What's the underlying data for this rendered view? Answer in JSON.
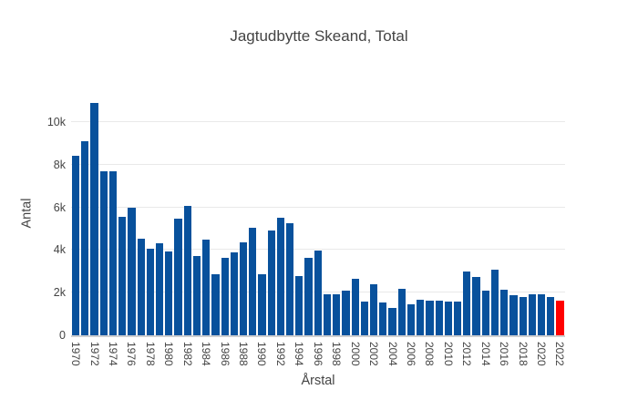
{
  "title": "Jagtudbytte Skeand, Total",
  "colors": {
    "bar": "#08519c",
    "highlight": "#ff0000",
    "text": "#444444",
    "grid": "#e9e9e9",
    "axis_line": "#d0d0d0",
    "background": "#ffffff"
  },
  "chart_data": {
    "type": "bar",
    "title": "Jagtudbytte Skeand, Total",
    "xlabel": "Årstal",
    "ylabel": "Antal",
    "grid": true,
    "legend": false,
    "ylim": [
      0,
      11450
    ],
    "ytick_values": [
      0,
      2000,
      4000,
      6000,
      8000,
      10000
    ],
    "ytick_labels": [
      "0",
      "2k",
      "4k",
      "6k",
      "8k",
      "10k"
    ],
    "xtick_step": 2,
    "highlight_category": "2022",
    "categories": [
      "1970",
      "1971",
      "1972",
      "1973",
      "1974",
      "1975",
      "1976",
      "1977",
      "1978",
      "1979",
      "1980",
      "1981",
      "1982",
      "1983",
      "1984",
      "1985",
      "1986",
      "1987",
      "1988",
      "1989",
      "1990",
      "1991",
      "1992",
      "1993",
      "1994",
      "1995",
      "1996",
      "1997",
      "1998",
      "1999",
      "2000",
      "2001",
      "2002",
      "2003",
      "2004",
      "2005",
      "2006",
      "2007",
      "2008",
      "2009",
      "2010",
      "2011",
      "2012",
      "2013",
      "2014",
      "2015",
      "2016",
      "2017",
      "2018",
      "2019",
      "2020",
      "2021",
      "2022"
    ],
    "values": [
      8400,
      9100,
      10900,
      7700,
      7700,
      5550,
      6000,
      4550,
      4050,
      4300,
      3950,
      5450,
      6050,
      3700,
      4500,
      2880,
      3650,
      3900,
      4370,
      5060,
      2880,
      4900,
      5500,
      5270,
      2790,
      3650,
      3960,
      1940,
      1940,
      2110,
      2650,
      1560,
      2400,
      1540,
      1290,
      2190,
      1450,
      1680,
      1640,
      1640,
      1600,
      1560,
      3010,
      2740,
      2090,
      3090,
      2150,
      1870,
      1790,
      1940,
      1940,
      1780,
      1610
    ]
  }
}
